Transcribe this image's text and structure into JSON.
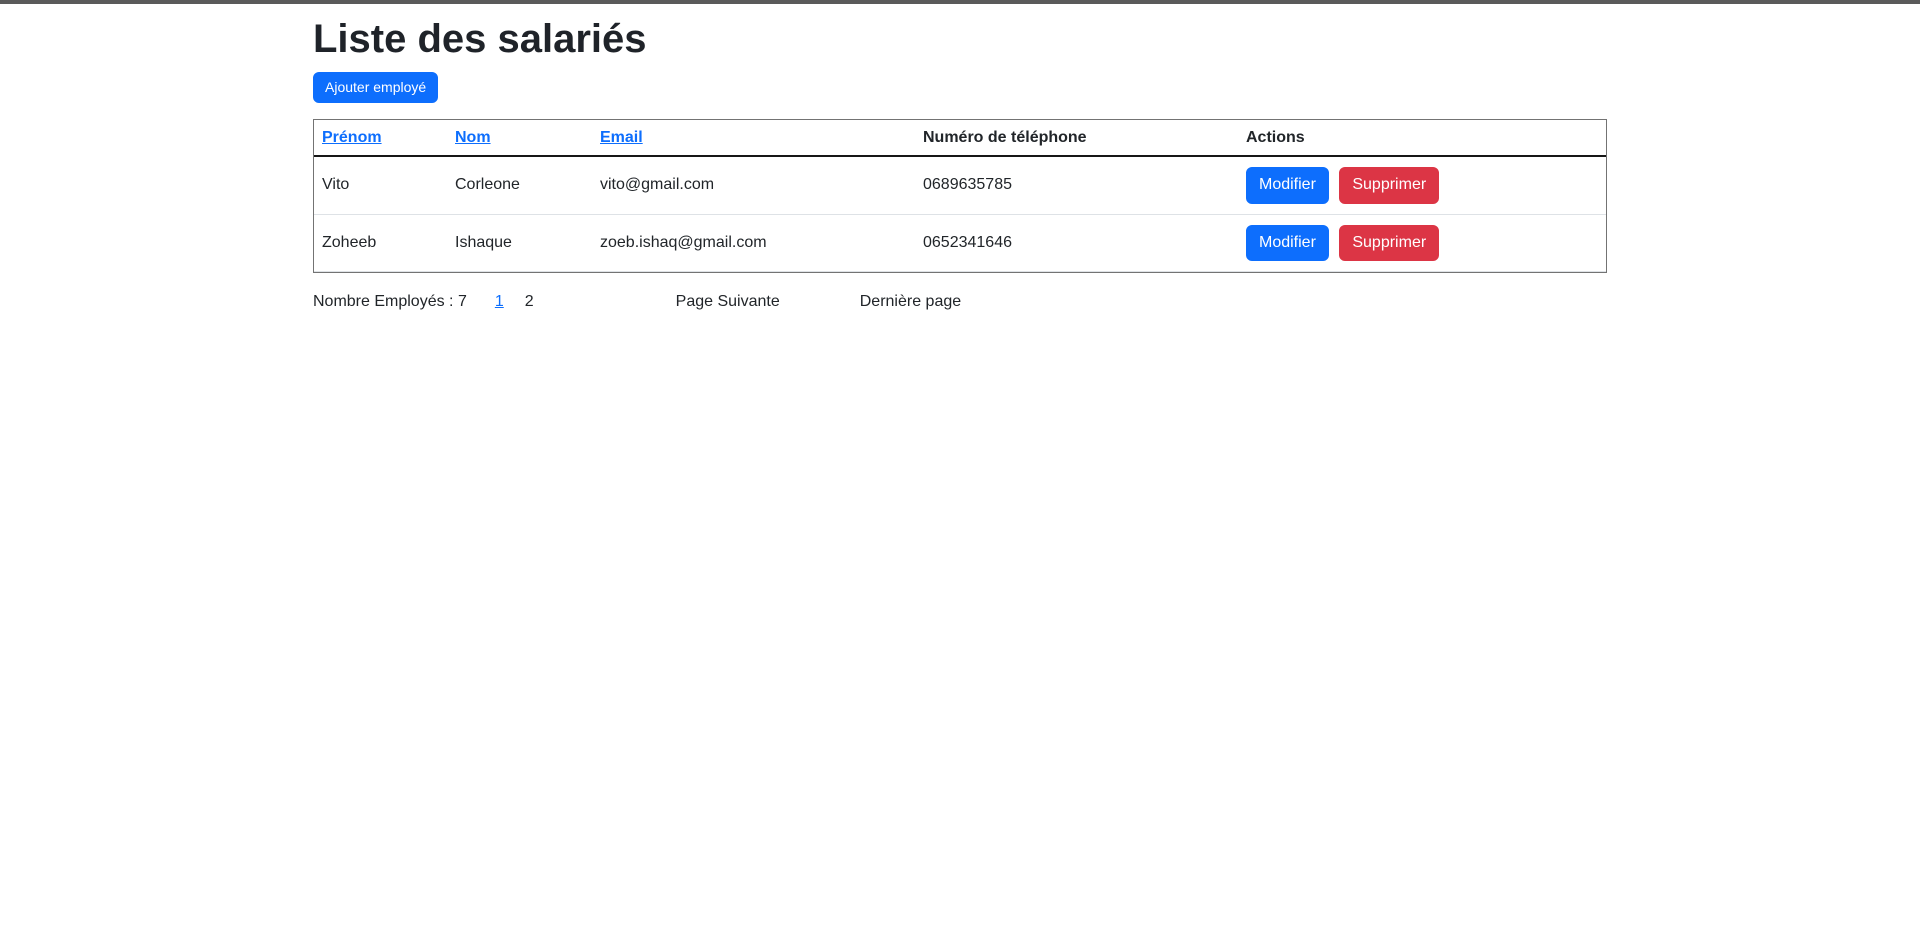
{
  "page": {
    "title": "Liste des salariés",
    "add_button_label": "Ajouter employé"
  },
  "table": {
    "headers": [
      {
        "label": "Prénom",
        "sortable": true
      },
      {
        "label": "Nom",
        "sortable": true
      },
      {
        "label": "Email",
        "sortable": true
      },
      {
        "label": "Numéro de téléphone",
        "sortable": false
      },
      {
        "label": "Actions",
        "sortable": false
      }
    ],
    "rows": [
      {
        "prenom": "Vito",
        "nom": "Corleone",
        "email": "vito@gmail.com",
        "telephone": "0689635785"
      },
      {
        "prenom": "Zoheeb",
        "nom": "Ishaque",
        "email": "zoeb.ishaq@gmail.com",
        "telephone": "0652341646"
      }
    ],
    "actions": {
      "modify": "Modifier",
      "delete": "Supprimer"
    }
  },
  "pagination": {
    "count_label": "Nombre Employés : 7",
    "pages": [
      "1",
      "2"
    ],
    "current_page": "1",
    "next_label": "Page Suivante",
    "last_label": "Dernière page"
  },
  "colors": {
    "primary": "#0d6efd",
    "danger": "#dc3545",
    "link": "#0d6efd",
    "text": "#212529",
    "top_bar": "#5a5a5a",
    "table_outer_border": "#737373",
    "header_bottom_border": "#161616",
    "row_border": "#dee2e6"
  }
}
